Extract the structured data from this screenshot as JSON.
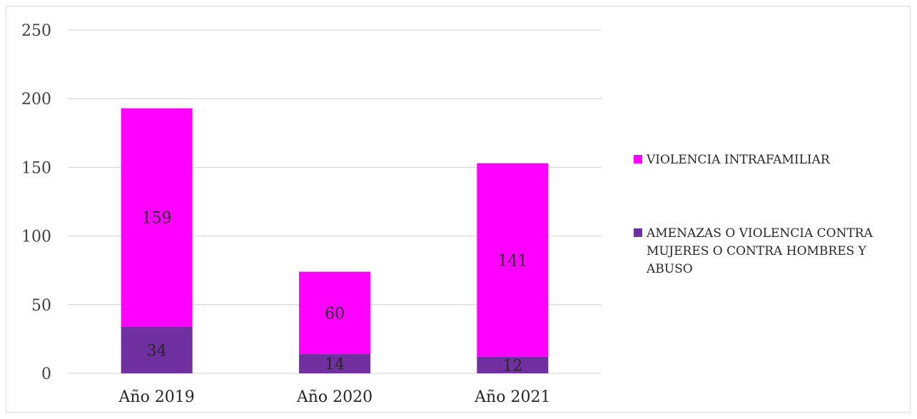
{
  "chart_data": {
    "type": "bar",
    "stacked": true,
    "categories": [
      "Año 2019",
      "Año 2020",
      "Año 2021"
    ],
    "series": [
      {
        "name": "AMENAZAS O VIOLENCIA CONTRA MUJERES O CONTRA HOMBRES Y ABUSO",
        "legend_lines": [
          "AMENAZAS O VIOLENCIA CONTRA",
          "MUJERES O CONTRA HOMBRES Y",
          "ABUSO"
        ],
        "values": [
          34,
          14,
          12
        ],
        "color": "#7030a0"
      },
      {
        "name": "VIOLENCIA INTRAFAMILIAR",
        "legend_lines": [
          "VIOLENCIA INTRAFAMILIAR"
        ],
        "values": [
          159,
          60,
          141
        ],
        "color": "#ff00ff"
      }
    ],
    "ylim": [
      0,
      250
    ],
    "yticks": [
      0,
      50,
      100,
      150,
      200,
      250
    ],
    "grid": true,
    "legend_position": "right",
    "title": "",
    "xlabel": "",
    "ylabel": ""
  }
}
